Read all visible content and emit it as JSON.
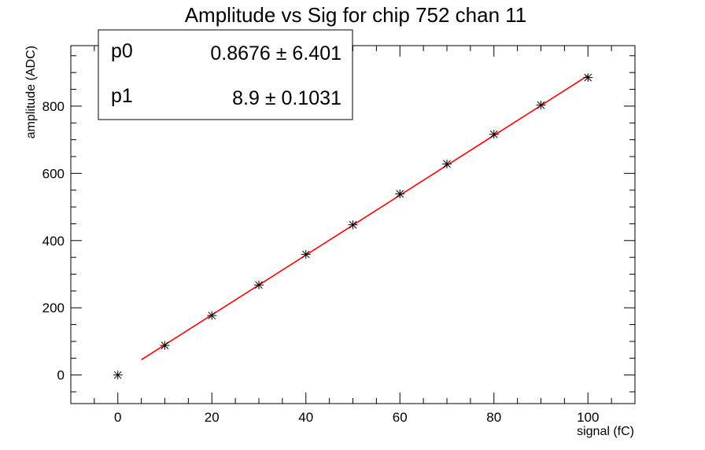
{
  "chart_data": {
    "type": "scatter",
    "title": "Amplitude vs Sig for chip 752 chan 11",
    "xlabel": "signal (fC)",
    "ylabel": "amplitude (ADC)",
    "xlim": [
      -10,
      110
    ],
    "ylim": [
      -85,
      980
    ],
    "x_ticks": [
      0,
      20,
      40,
      60,
      80,
      100
    ],
    "x_tick_labels": [
      "0",
      "20",
      "40",
      "60",
      "80",
      "100"
    ],
    "y_ticks": [
      0,
      200,
      400,
      600,
      800
    ],
    "y_tick_labels": [
      "0",
      "200",
      "400",
      "600",
      "800"
    ],
    "grid": false,
    "series": [
      {
        "type": "scatter",
        "marker": "asterisk",
        "color": "#000000",
        "x": [
          0,
          10,
          20,
          30,
          40,
          50,
          60,
          70,
          80,
          90,
          100
        ],
        "y": [
          0,
          88,
          177,
          268,
          359,
          447,
          539,
          628,
          716,
          803,
          885
        ],
        "x_error": 1.0
      },
      {
        "type": "line",
        "color": "#ff0000",
        "x_range": [
          5,
          100
        ],
        "p0": 0.8676,
        "p1": 8.9
      }
    ],
    "fit_box": {
      "rows": [
        {
          "name": "p0",
          "value": "0.8676 ± 6.401"
        },
        {
          "name": "p1",
          "value": "8.9 ± 0.1031"
        }
      ]
    }
  }
}
